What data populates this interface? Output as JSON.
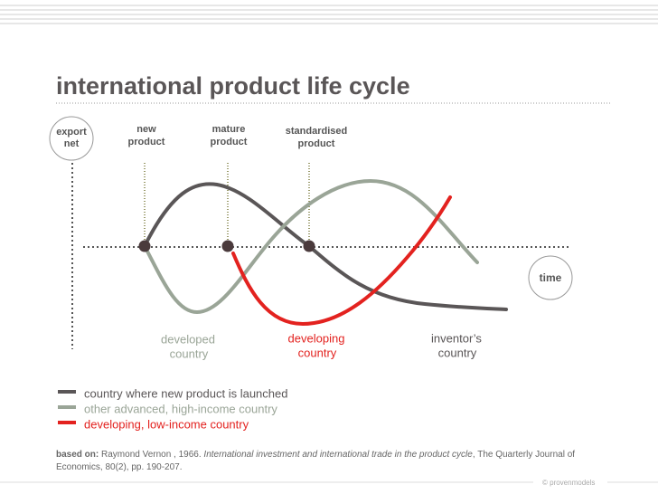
{
  "title": "international product life cycle",
  "axes": {
    "y_label": [
      "export",
      "net"
    ],
    "x_label": "time"
  },
  "stages": [
    {
      "lines": [
        "new",
        "product"
      ]
    },
    {
      "lines": [
        "mature",
        "product"
      ]
    },
    {
      "lines": [
        "standardised",
        "product"
      ]
    }
  ],
  "curve_labels": [
    {
      "lines": [
        "developed",
        "country"
      ],
      "color": "#9aa597"
    },
    {
      "lines": [
        "developing",
        "country"
      ],
      "color": "#e3221f"
    },
    {
      "lines": [
        "inventor’s",
        "country"
      ],
      "color": "#5a5657"
    }
  ],
  "legend": [
    {
      "label": "country where new product is launched",
      "color": "#5a5657"
    },
    {
      "label": "other advanced, high-income country",
      "color": "#9aa597"
    },
    {
      "label": "developing, low-income country",
      "color": "#e3221f"
    }
  ],
  "source": {
    "lead": "based on:",
    "author": " Raymond Vernon , 1966. ",
    "work": "International investment and international trade in the product cycle",
    "rest": ", The Quarterly Journal of Economics, 80(2), pp. 190-207."
  },
  "footer": "© provenmodels"
}
